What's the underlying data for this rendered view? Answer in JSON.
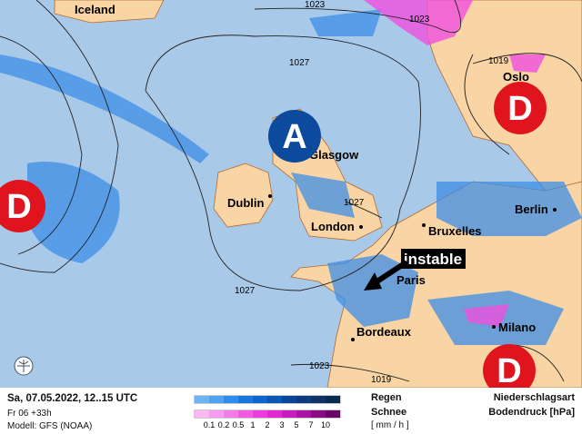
{
  "map": {
    "cities": [
      {
        "name": "Iceland"
      },
      {
        "name": "Oslo"
      },
      {
        "name": "Glasgow"
      },
      {
        "name": "Dublin"
      },
      {
        "name": "London"
      },
      {
        "name": "Bruxelles"
      },
      {
        "name": "Berlin"
      },
      {
        "name": "Paris"
      },
      {
        "name": "Milano"
      },
      {
        "name": "Bordeaux"
      }
    ],
    "isobars": [
      "1023",
      "1023",
      "1019",
      "1027",
      "1027",
      "1027",
      "1023",
      "1019"
    ],
    "pressure_centers": [
      {
        "label": "A",
        "type": "high",
        "color": "#0b4a9c"
      },
      {
        "label": "D",
        "type": "low",
        "color": "#e0141e"
      },
      {
        "label": "D",
        "type": "low",
        "color": "#e0141e"
      },
      {
        "label": "D",
        "type": "low",
        "color": "#e0141e"
      }
    ],
    "annotation": "instable",
    "colors": {
      "sea": "#a9c9e9",
      "land": "#f9d5a5",
      "rain": "#3d8ee6",
      "snow": "#f050e0"
    }
  },
  "legend": {
    "date": "Sa, 07.05.2022, 12..15 UTC",
    "run": "Fr 06 +33h",
    "model": "Modell: GFS (NOAA)",
    "rain_label": "Regen",
    "snow_label": "Schnee",
    "unit": "[ mm / h ]",
    "ticks": [
      "0.1",
      "0.2",
      "0.5",
      "1",
      "2",
      "3",
      "5",
      "7",
      "10"
    ],
    "rain_colors": [
      "#6cb4f6",
      "#4ea2f0",
      "#2f8cea",
      "#1a78dc",
      "#0f66c8",
      "#0a56b0",
      "#08469a",
      "#0d3d80",
      "#0f3466",
      "#0b2a52"
    ],
    "snow_colors": [
      "#fbb8f4",
      "#f89cf0",
      "#f47cea",
      "#ef5ce4",
      "#ea3ede",
      "#e028d6",
      "#c81cc0",
      "#aa14a6",
      "#880c88",
      "#6a066a"
    ],
    "type_label": "Niederschlagsart",
    "pressure_label": "Bodendruck [hPa]"
  }
}
